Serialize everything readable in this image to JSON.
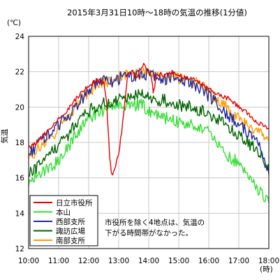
{
  "chart_data": {
    "type": "line",
    "title": "2015年3月31日10時～18時の気温の推移(1分値)",
    "unit_label": "(℃)",
    "ylabel": "気温",
    "x_unit_label": "(時)",
    "xlim": [
      10,
      18
    ],
    "ylim": [
      12,
      24
    ],
    "x_ticks": [
      10,
      11,
      12,
      13,
      14,
      15,
      16,
      17,
      18
    ],
    "x_tick_labels": [
      "10:00",
      "11:00",
      "12:00",
      "13:00",
      "14:00",
      "15:00",
      "16:00",
      "17:00",
      "18:00"
    ],
    "y_ticks": [
      12,
      14,
      16,
      18,
      20,
      22,
      24
    ],
    "y_tick_labels": [
      "12",
      "14",
      "16",
      "18",
      "20",
      "22",
      "24"
    ],
    "grid": true,
    "legend_position": "bottom-left",
    "annotation": [
      "市役所を除く4地点は、気温の",
      "下がる時間帯がなかった。"
    ],
    "series": [
      {
        "name": "日立市役所",
        "color": "#e60000",
        "x": [
          10.0,
          10.25,
          10.5,
          10.75,
          11.0,
          11.25,
          11.5,
          11.75,
          12.0,
          12.25,
          12.5,
          12.6,
          12.7,
          12.75,
          12.8,
          12.9,
          13.0,
          13.1,
          13.2,
          13.3,
          13.4,
          13.5,
          13.6,
          13.7,
          13.8,
          13.9,
          14.0,
          14.1,
          14.15,
          14.2,
          14.25,
          14.3,
          14.4,
          14.5,
          14.75,
          15.0,
          15.25,
          15.5,
          15.75,
          16.0,
          16.25,
          16.5,
          16.75,
          17.0,
          17.25,
          17.5,
          17.75,
          18.0
        ],
        "y": [
          17.7,
          18.0,
          18.4,
          18.8,
          19.3,
          19.7,
          20.3,
          20.8,
          21.2,
          21.5,
          21.4,
          20.2,
          17.2,
          16.4,
          16.2,
          16.7,
          17.4,
          18.6,
          20.2,
          21.8,
          22.0,
          22.0,
          21.6,
          22.1,
          22.4,
          22.3,
          22.0,
          21.6,
          20.8,
          21.2,
          21.9,
          21.8,
          21.9,
          21.8,
          22.0,
          21.8,
          21.6,
          21.6,
          21.3,
          21.0,
          20.8,
          20.6,
          20.4,
          20.0,
          19.7,
          19.3,
          19.0,
          18.8
        ]
      },
      {
        "name": "本山",
        "color": "#33dd33",
        "x": [
          10.0,
          10.25,
          10.5,
          10.75,
          11.0,
          11.25,
          11.5,
          11.75,
          12.0,
          12.25,
          12.5,
          12.75,
          13.0,
          13.25,
          13.5,
          13.75,
          14.0,
          14.25,
          14.5,
          14.75,
          15.0,
          15.25,
          15.5,
          15.75,
          16.0,
          16.25,
          16.5,
          16.75,
          17.0,
          17.25,
          17.5,
          17.75,
          18.0
        ],
        "y": [
          15.8,
          16.2,
          16.4,
          16.6,
          17.0,
          17.6,
          18.2,
          18.9,
          19.4,
          19.6,
          19.8,
          20.0,
          20.2,
          20.0,
          20.1,
          20.2,
          19.7,
          19.6,
          19.4,
          19.3,
          19.1,
          19.0,
          19.0,
          18.8,
          18.8,
          18.1,
          17.5,
          17.1,
          16.9,
          16.4,
          15.7,
          15.1,
          14.6
        ]
      },
      {
        "name": "西部支所",
        "color": "#1f2a9e",
        "x": [
          10.0,
          10.25,
          10.5,
          10.75,
          11.0,
          11.25,
          11.5,
          11.75,
          12.0,
          12.25,
          12.5,
          12.75,
          13.0,
          13.25,
          13.5,
          13.75,
          14.0,
          14.25,
          14.5,
          14.75,
          15.0,
          15.25,
          15.5,
          15.75,
          16.0,
          16.25,
          16.5,
          16.75,
          17.0,
          17.25,
          17.5,
          17.75,
          18.0
        ],
        "y": [
          17.3,
          17.8,
          18.2,
          18.6,
          19.0,
          19.3,
          19.9,
          20.4,
          20.9,
          21.3,
          21.5,
          21.4,
          21.6,
          21.8,
          21.7,
          21.8,
          21.9,
          21.7,
          21.5,
          21.7,
          21.6,
          21.5,
          21.2,
          21.0,
          20.6,
          20.2,
          19.8,
          19.4,
          19.0,
          18.6,
          18.2,
          17.6,
          16.2
        ]
      },
      {
        "name": "諏訪広場",
        "color": "#006400",
        "x": [
          10.0,
          10.25,
          10.5,
          10.75,
          11.0,
          11.25,
          11.5,
          11.75,
          12.0,
          12.25,
          12.5,
          12.75,
          13.0,
          13.25,
          13.5,
          13.75,
          14.0,
          14.25,
          14.5,
          14.75,
          15.0,
          15.25,
          15.5,
          15.75,
          16.0,
          16.25,
          16.5,
          16.75,
          17.0,
          17.25,
          17.5,
          17.75,
          18.0
        ],
        "y": [
          16.2,
          16.6,
          16.9,
          17.4,
          17.8,
          18.3,
          18.9,
          19.4,
          19.8,
          20.0,
          20.2,
          20.3,
          20.5,
          20.6,
          20.6,
          20.7,
          20.5,
          20.4,
          20.4,
          20.2,
          20.1,
          20.1,
          19.9,
          19.8,
          19.6,
          19.4,
          19.1,
          18.7,
          18.4,
          18.1,
          17.7,
          17.3,
          16.5
        ]
      },
      {
        "name": "南部支所",
        "color": "#ff9900",
        "x": [
          10.0,
          10.25,
          10.5,
          10.75,
          11.0,
          11.25,
          11.5,
          11.75,
          12.0,
          12.25,
          12.5,
          12.75,
          13.0,
          13.25,
          13.5,
          13.75,
          14.0,
          14.25,
          14.5,
          14.75,
          15.0,
          15.25,
          15.5,
          15.75,
          16.0,
          16.25,
          16.5,
          16.75,
          17.0,
          17.25,
          17.5,
          17.75,
          18.0
        ],
        "y": [
          17.1,
          17.5,
          17.9,
          18.3,
          18.8,
          19.2,
          19.8,
          20.4,
          20.9,
          21.2,
          21.4,
          21.5,
          21.7,
          21.8,
          21.8,
          21.9,
          21.9,
          21.8,
          21.7,
          21.7,
          21.6,
          21.6,
          21.4,
          21.2,
          20.9,
          20.5,
          20.1,
          19.7,
          19.3,
          19.0,
          18.7,
          18.4,
          18.1
        ]
      }
    ]
  }
}
